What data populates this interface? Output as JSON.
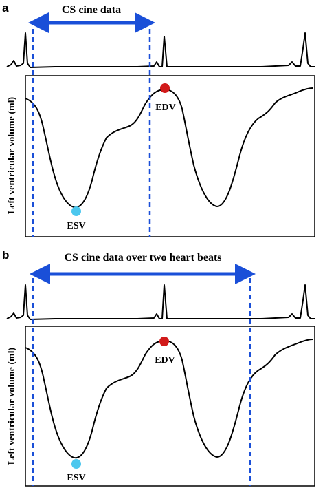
{
  "colors": {
    "accent_blue": "#1a4fd8",
    "edv_red": "#d11a1a",
    "esv_cyan": "#4cc7ee",
    "line_black": "#000000"
  },
  "panels": [
    {
      "letter": "a",
      "span_label": "CS cine data",
      "y_axis_label": "Left ventricular volume (ml)",
      "edv_label": "EDV",
      "esv_label": "ESV"
    },
    {
      "letter": "b",
      "span_label": "CS cine data over two heart beats",
      "y_axis_label": "Left ventricular volume (ml)",
      "edv_label": "EDV",
      "esv_label": "ESV"
    }
  ]
}
